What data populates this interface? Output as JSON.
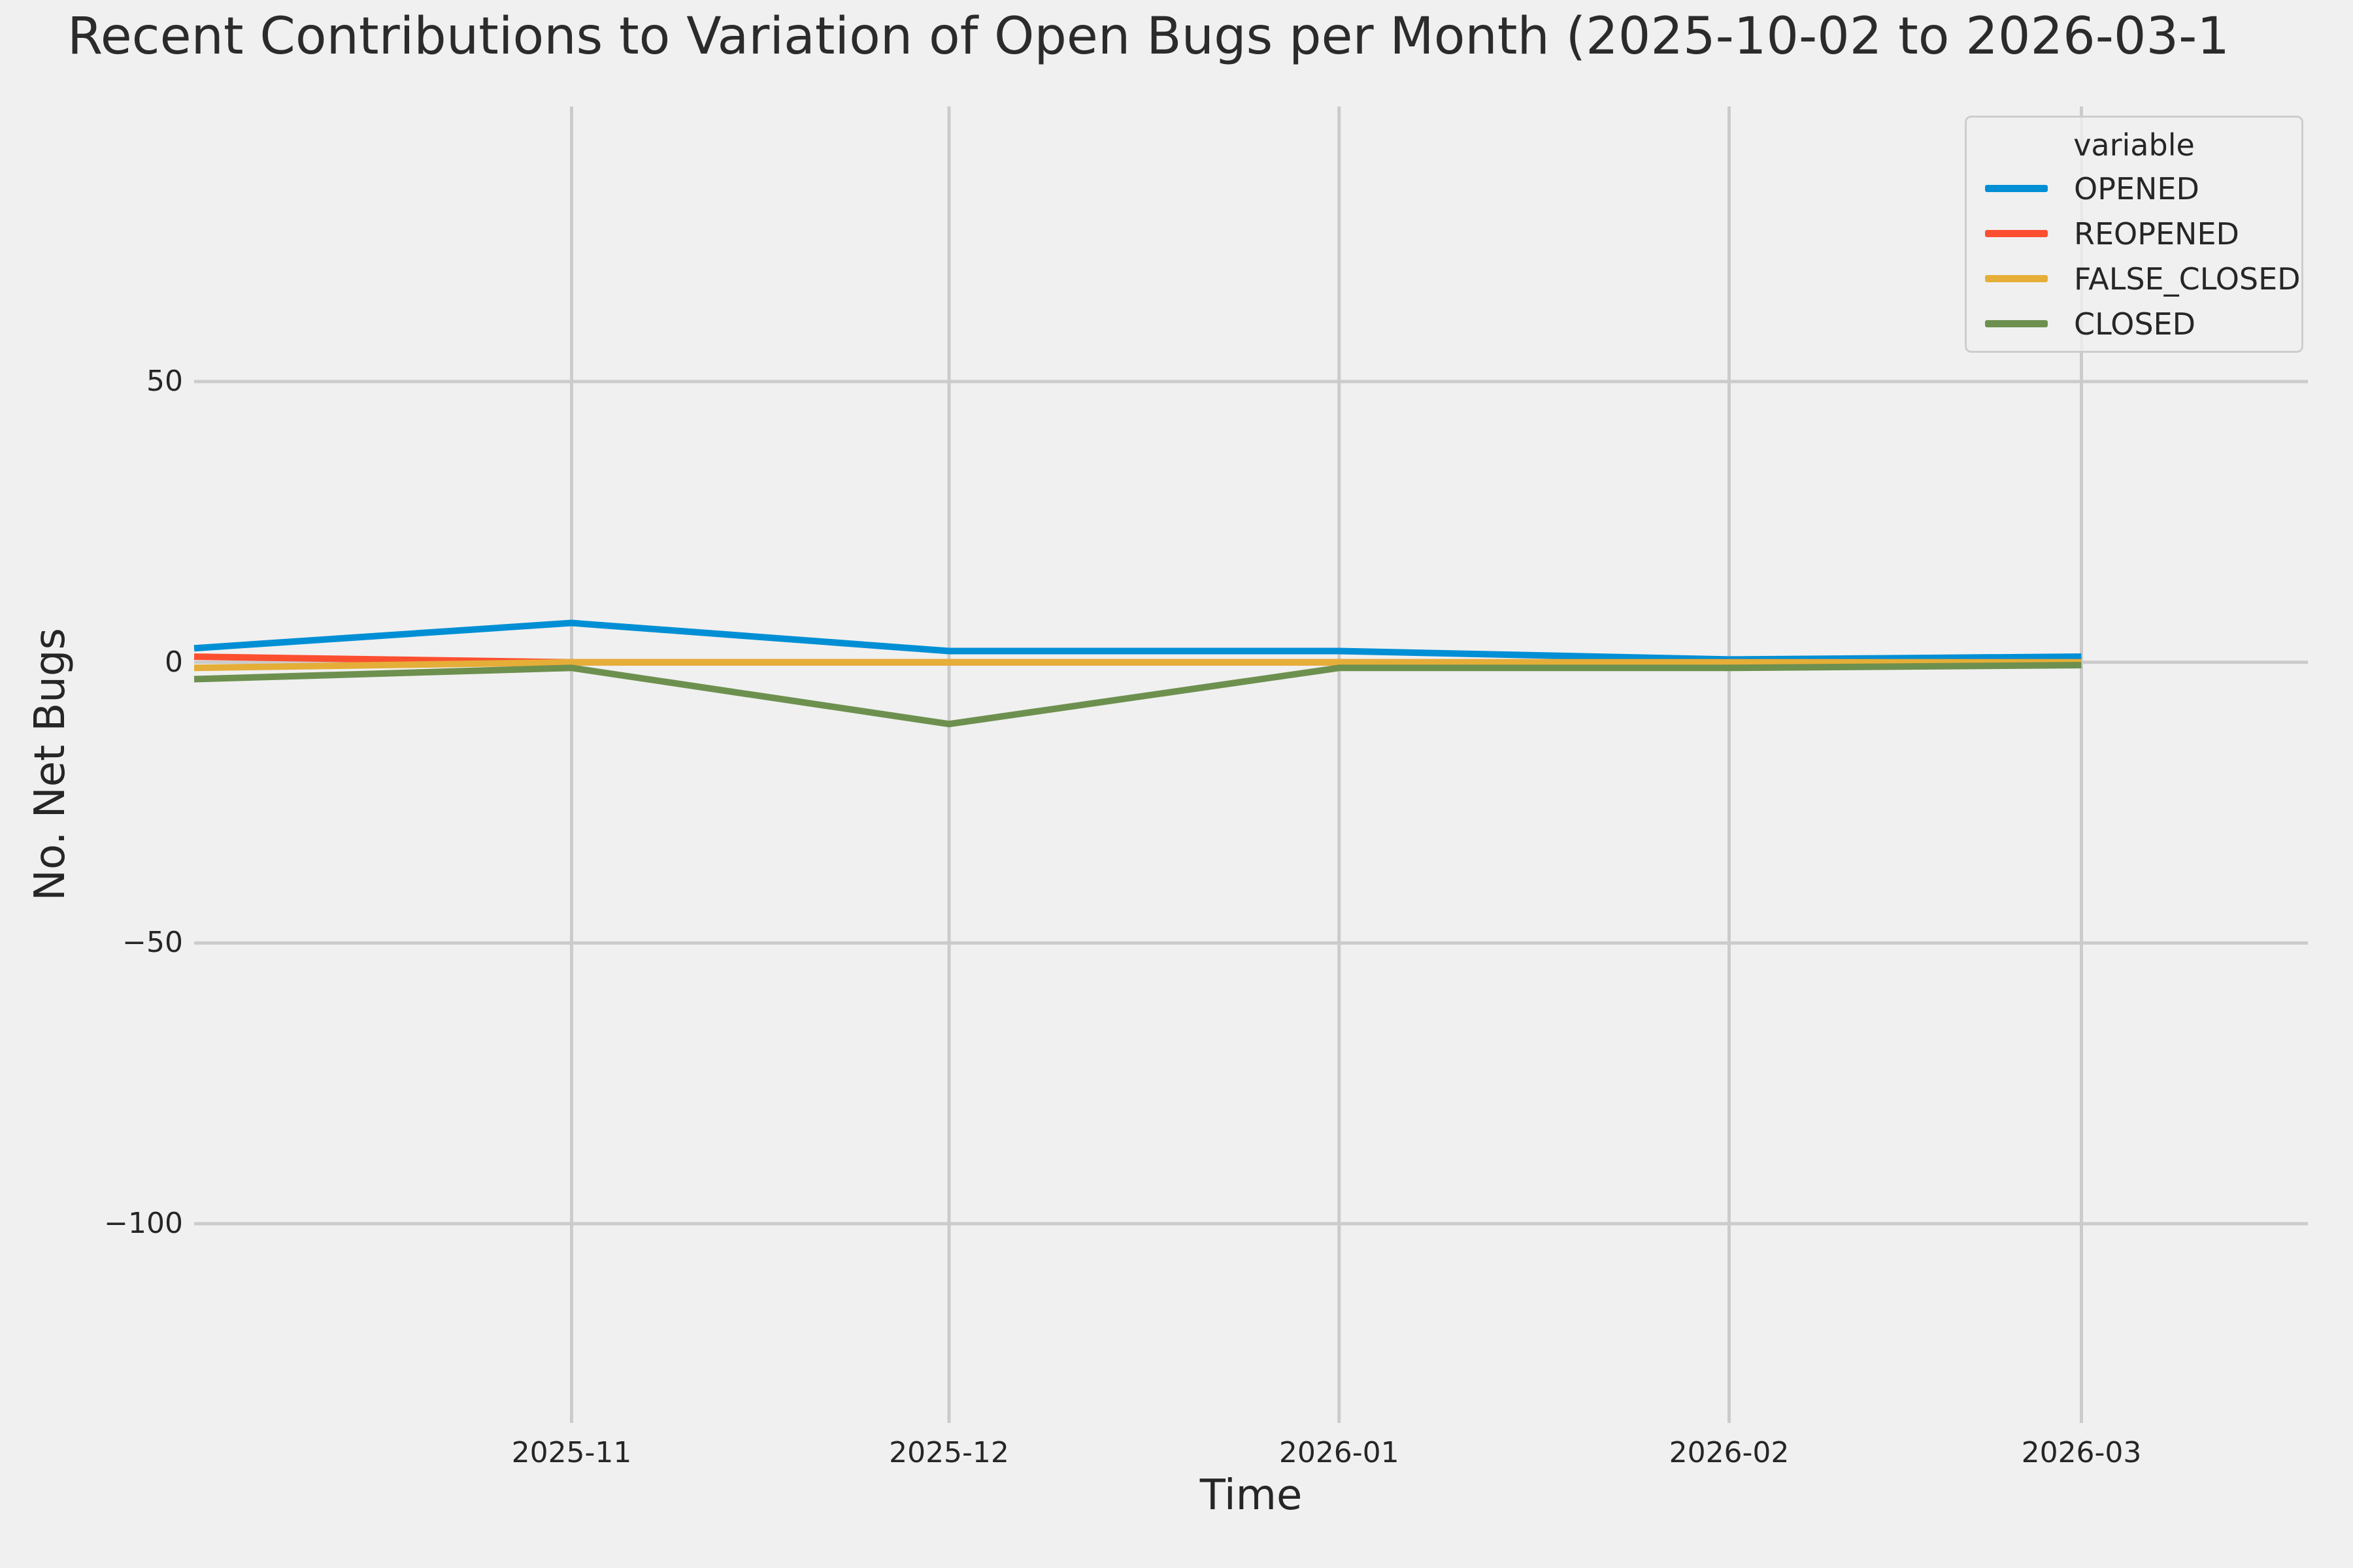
{
  "title": "Recent Contributions to Variation of Open Bugs per Month (2025-10-02 to 2026-03-1",
  "colors": {
    "background": "#f0f0f0",
    "grid": "#cbcbcb",
    "text": "#262626",
    "legend_border": "#cdcdcd",
    "opened": "#008fd5",
    "reopened": "#fc4f30",
    "false_closed": "#e5ae38",
    "closed": "#6d904f"
  },
  "chart_data": {
    "type": "line",
    "title": "Recent Contributions to Variation of Open Bugs per Month (2025-10-02 to 2026-03-1",
    "xlabel": "Time",
    "ylabel": "No. Net Bugs",
    "x": [
      "2025-10-02",
      "2025-11-01",
      "2025-12-01",
      "2026-01-01",
      "2026-02-01",
      "2026-03-01"
    ],
    "x_day_offsets": [
      0,
      30,
      60,
      91,
      122,
      150
    ],
    "xlim_days": [
      0,
      168
    ],
    "ylim": [
      -135.5,
      99
    ],
    "grid": true,
    "legend": {
      "title": "variable",
      "position": "upper right"
    },
    "xtick_labels": [
      "2025-11",
      "2025-12",
      "2026-01",
      "2026-02",
      "2026-03"
    ],
    "xtick_day_offsets": [
      30,
      60,
      91,
      122,
      150
    ],
    "ytick_labels": [
      "50",
      "0",
      "−50",
      "−100"
    ],
    "yticks": [
      50,
      0,
      -50,
      -100
    ],
    "series": [
      {
        "name": "OPENED",
        "color": "#008fd5",
        "values": [
          2.5,
          7,
          2,
          2,
          0.5,
          1
        ]
      },
      {
        "name": "REOPENED",
        "color": "#fc4f30",
        "values": [
          1,
          0,
          0,
          0,
          0,
          0
        ]
      },
      {
        "name": "FALSE_CLOSED",
        "color": "#e5ae38",
        "values": [
          -1,
          0,
          0,
          0,
          0,
          0
        ]
      },
      {
        "name": "CLOSED",
        "color": "#6d904f",
        "values": [
          -3,
          -1,
          -11,
          -1,
          -1,
          -0.5
        ]
      }
    ]
  }
}
